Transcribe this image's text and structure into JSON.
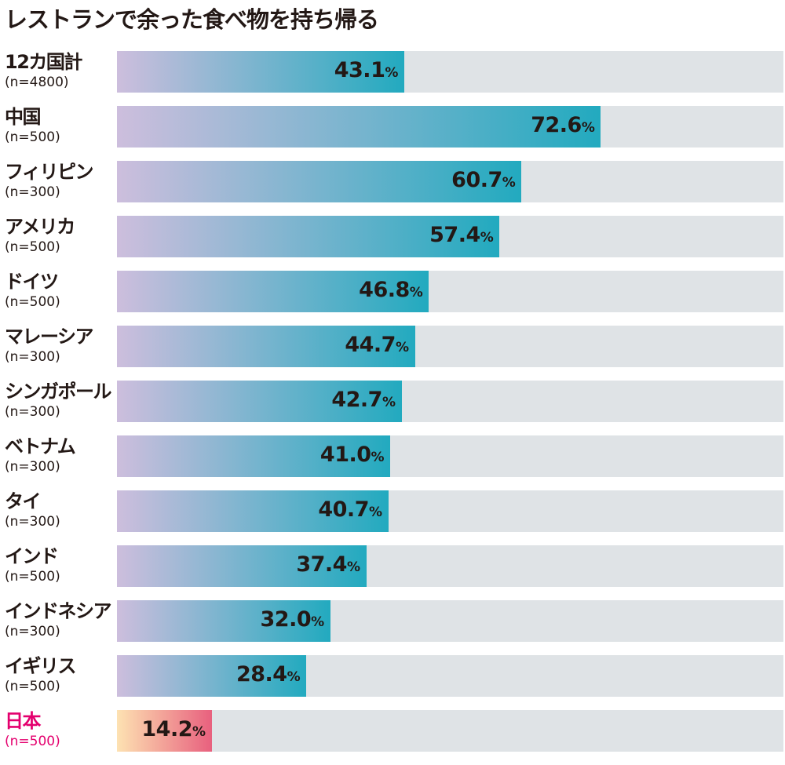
{
  "chart_data": {
    "type": "bar",
    "orientation": "horizontal",
    "title": "レストランで余った食べ物を持ち帰る",
    "xlim": [
      0,
      100
    ],
    "unit": "%",
    "categories": [
      {
        "name": "12カ国計",
        "n": "(n=4800)",
        "value": 43.1
      },
      {
        "name": "中国",
        "n": "(n=500)",
        "value": 72.6
      },
      {
        "name": "フィリピン",
        "n": "(n=300)",
        "value": 60.7
      },
      {
        "name": "アメリカ",
        "n": "(n=500)",
        "value": 57.4
      },
      {
        "name": "ドイツ",
        "n": "(n=500)",
        "value": 46.8
      },
      {
        "name": "マレーシア",
        "n": "(n=300)",
        "value": 44.7
      },
      {
        "name": "シンガポール",
        "n": "(n=300)",
        "value": 42.7
      },
      {
        "name": "ベトナム",
        "n": "(n=300)",
        "value": 41.0
      },
      {
        "name": "タイ",
        "n": "(n=300)",
        "value": 40.7
      },
      {
        "name": "インド",
        "n": "(n=500)",
        "value": 37.4
      },
      {
        "name": "インドネシア",
        "n": "(n=300)",
        "value": 32.0
      },
      {
        "name": "イギリス",
        "n": "(n=500)",
        "value": 28.4
      },
      {
        "name": "日本",
        "n": "(n=500)",
        "value": 14.2,
        "highlight": true
      }
    ],
    "colors": {
      "bar_start": "#cdbedd",
      "bar_end": "#22aabf",
      "highlight_start": "#fde2b2",
      "highlight_end": "#e8607e",
      "highlight_label": "#e4006e",
      "track": "#dfe3e6"
    }
  }
}
